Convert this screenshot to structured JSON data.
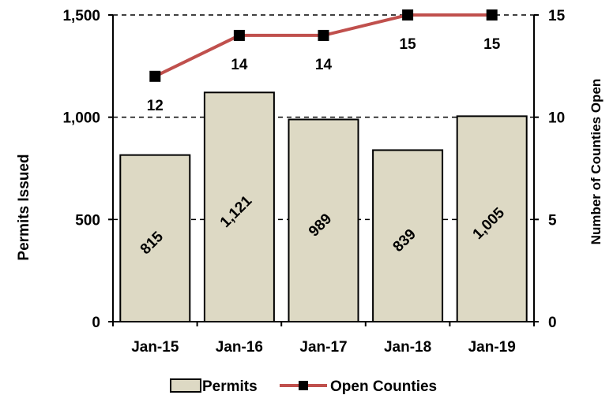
{
  "chart_data": {
    "type": "bar",
    "categories": [
      "Jan-15",
      "Jan-16",
      "Jan-17",
      "Jan-18",
      "Jan-19"
    ],
    "series": [
      {
        "name": "Permits",
        "type": "bar",
        "axis": "left",
        "values": [
          815,
          1121,
          989,
          839,
          1005
        ],
        "labels": [
          "815",
          "1,121",
          "989",
          "839",
          "1,005"
        ],
        "color": "#ddd9c4"
      },
      {
        "name": "Open Counties",
        "type": "line",
        "axis": "right",
        "values": [
          12,
          14,
          14,
          15,
          15
        ],
        "labels": [
          "12",
          "14",
          "14",
          "15",
          "15"
        ],
        "color": "#c0504d",
        "marker_color": "#000000"
      }
    ],
    "ylabel": "Permits Issued",
    "y2label": "Number of Counties Open",
    "ylim": [
      0,
      1500
    ],
    "y2lim": [
      0,
      15
    ],
    "yticks": [
      "0",
      "500",
      "1,000",
      "1,500"
    ],
    "y2ticks": [
      "0",
      "5",
      "10",
      "15"
    ],
    "ytick_values": [
      0,
      500,
      1000,
      1500
    ],
    "y2tick_values": [
      0,
      5,
      10,
      15
    ],
    "grid": "dashed horizontal",
    "legend_position": "bottom"
  }
}
